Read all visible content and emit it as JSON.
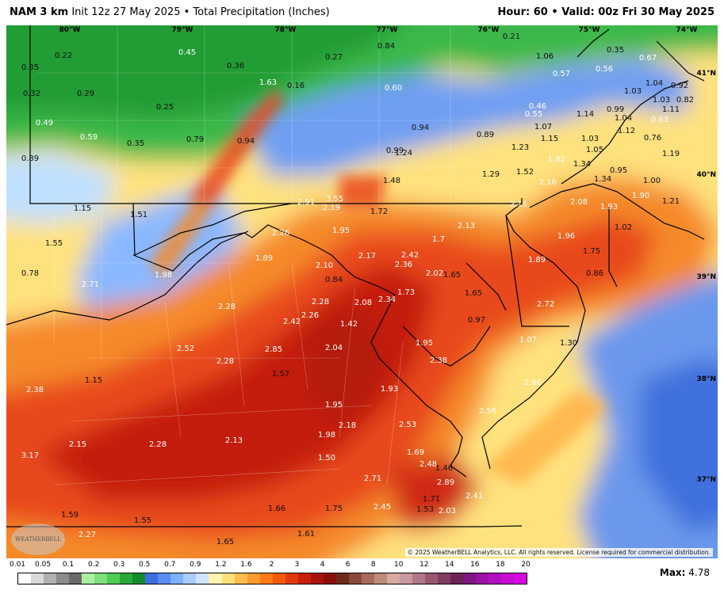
{
  "header": {
    "model": "NAM 3 km",
    "init": "Init 12z 27 May 2025",
    "separator": "•",
    "product": "Total Precipitation (Inches)",
    "hour_label": "Hour:",
    "hour": "60",
    "valid_label": "Valid:",
    "valid": "00z Fri 30 May 2025"
  },
  "map": {
    "copyright": "© 2025 WeatherBELL Analytics, LLC. All rights reserved. License required for commercial distribution.",
    "logo_text": "WEATHERBELL",
    "lon_labels": [
      "80°W",
      "79°W",
      "78°W",
      "77°W",
      "76°W",
      "75°W",
      "74°W"
    ],
    "lat_labels": [
      "41°N",
      "40°N",
      "39°N",
      "38°N",
      "37°N"
    ],
    "values": [
      {
        "text": "0.22",
        "tone": "dark"
      },
      {
        "text": "0.35",
        "tone": "dark"
      },
      {
        "text": "0.32",
        "tone": "dark"
      },
      {
        "text": "0.29",
        "tone": "dark"
      },
      {
        "text": "0.49",
        "tone": "light"
      },
      {
        "text": "0.45",
        "tone": "light"
      },
      {
        "text": "0.36",
        "tone": "dark"
      },
      {
        "text": "1.63",
        "tone": "light"
      },
      {
        "text": "0.16",
        "tone": "dark"
      },
      {
        "text": "0.27",
        "tone": "dark"
      },
      {
        "text": "0.84",
        "tone": "dark"
      },
      {
        "text": "0.21",
        "tone": "dark"
      },
      {
        "text": "1.06",
        "tone": "dark"
      },
      {
        "text": "0.35",
        "tone": "dark"
      },
      {
        "text": "0.67",
        "tone": "light"
      },
      {
        "text": "0.57",
        "tone": "light"
      },
      {
        "text": "0.56",
        "tone": "light"
      },
      {
        "text": "1.04",
        "tone": "dark"
      },
      {
        "text": "0.92",
        "tone": "dark"
      },
      {
        "text": "1.03",
        "tone": "dark"
      },
      {
        "text": "1.03",
        "tone": "dark"
      },
      {
        "text": "0.82",
        "tone": "dark"
      },
      {
        "text": "1.11",
        "tone": "dark"
      },
      {
        "text": "0.25",
        "tone": "dark"
      },
      {
        "text": "0.60",
        "tone": "light"
      },
      {
        "text": "0.46",
        "tone": "light"
      },
      {
        "text": "0.55",
        "tone": "light"
      },
      {
        "text": "0.99",
        "tone": "dark"
      },
      {
        "text": "1.14",
        "tone": "dark"
      },
      {
        "text": "1.04",
        "tone": "dark"
      },
      {
        "text": "0.63",
        "tone": "light"
      },
      {
        "text": "0.59",
        "tone": "light"
      },
      {
        "text": "0.35",
        "tone": "dark"
      },
      {
        "text": "0.79",
        "tone": "dark"
      },
      {
        "text": "0.94",
        "tone": "dark"
      },
      {
        "text": "0.94",
        "tone": "dark"
      },
      {
        "text": "0.89",
        "tone": "dark"
      },
      {
        "text": "1.07",
        "tone": "dark"
      },
      {
        "text": "1.15",
        "tone": "dark"
      },
      {
        "text": "1.03",
        "tone": "dark"
      },
      {
        "text": "1.12",
        "tone": "dark"
      },
      {
        "text": "0.76",
        "tone": "dark"
      },
      {
        "text": "0.89",
        "tone": "dark"
      },
      {
        "text": "0.99",
        "tone": "dark"
      },
      {
        "text": "1.24",
        "tone": "dark"
      },
      {
        "text": "1.23",
        "tone": "dark"
      },
      {
        "text": "1.05",
        "tone": "dark"
      },
      {
        "text": "1.19",
        "tone": "dark"
      },
      {
        "text": "1.82",
        "tone": "light"
      },
      {
        "text": "1.34",
        "tone": "dark"
      },
      {
        "text": "0.95",
        "tone": "dark"
      },
      {
        "text": "1.48",
        "tone": "dark"
      },
      {
        "text": "1.29",
        "tone": "dark"
      },
      {
        "text": "1.52",
        "tone": "dark"
      },
      {
        "text": "2.16",
        "tone": "light"
      },
      {
        "text": "1.34",
        "tone": "dark"
      },
      {
        "text": "1.00",
        "tone": "dark"
      },
      {
        "text": "1.15",
        "tone": "dark"
      },
      {
        "text": "1.51",
        "tone": "dark"
      },
      {
        "text": "2.91",
        "tone": "light"
      },
      {
        "text": "3.55",
        "tone": "light"
      },
      {
        "text": "2.19",
        "tone": "light"
      },
      {
        "text": "1.72",
        "tone": "dark"
      },
      {
        "text": "2.11",
        "tone": "light"
      },
      {
        "text": "2.08",
        "tone": "light"
      },
      {
        "text": "1.93",
        "tone": "light"
      },
      {
        "text": "1.90",
        "tone": "light"
      },
      {
        "text": "1.21",
        "tone": "dark"
      },
      {
        "text": "1.55",
        "tone": "dark"
      },
      {
        "text": "2.26",
        "tone": "light"
      },
      {
        "text": "1.95",
        "tone": "light"
      },
      {
        "text": "1.7",
        "tone": "light"
      },
      {
        "text": "2.13",
        "tone": "light"
      },
      {
        "text": "1.96",
        "tone": "light"
      },
      {
        "text": "1.02",
        "tone": "dark"
      },
      {
        "text": "1.89",
        "tone": "light"
      },
      {
        "text": "2.17",
        "tone": "light"
      },
      {
        "text": "2.42",
        "tone": "light"
      },
      {
        "text": "1.89",
        "tone": "light"
      },
      {
        "text": "1.75",
        "tone": "dark"
      },
      {
        "text": "0.78",
        "tone": "dark"
      },
      {
        "text": "1.98",
        "tone": "light"
      },
      {
        "text": "2.10",
        "tone": "light"
      },
      {
        "text": "2.36",
        "tone": "light"
      },
      {
        "text": "2.02",
        "tone": "light"
      },
      {
        "text": "1.65",
        "tone": "dark"
      },
      {
        "text": "0.86",
        "tone": "dark"
      },
      {
        "text": "2.71",
        "tone": "light"
      },
      {
        "text": "0.84",
        "tone": "dark"
      },
      {
        "text": "2.28",
        "tone": "light"
      },
      {
        "text": "2.28",
        "tone": "light"
      },
      {
        "text": "2.08",
        "tone": "light"
      },
      {
        "text": "2.34",
        "tone": "light"
      },
      {
        "text": "1.73",
        "tone": "light"
      },
      {
        "text": "1.65",
        "tone": "dark"
      },
      {
        "text": "2.72",
        "tone": "light"
      },
      {
        "text": "2.42",
        "tone": "light"
      },
      {
        "text": "2.26",
        "tone": "light"
      },
      {
        "text": "1.42",
        "tone": "light"
      },
      {
        "text": "0.97",
        "tone": "dark"
      },
      {
        "text": "1.07",
        "tone": "light"
      },
      {
        "text": "1.30",
        "tone": "dark"
      },
      {
        "text": "2.52",
        "tone": "light"
      },
      {
        "text": "2.85",
        "tone": "light"
      },
      {
        "text": "2.04",
        "tone": "light"
      },
      {
        "text": "1.95",
        "tone": "light"
      },
      {
        "text": "2.38",
        "tone": "light"
      },
      {
        "text": "2.28",
        "tone": "light"
      },
      {
        "text": "1.57",
        "tone": "dark"
      },
      {
        "text": "2.38",
        "tone": "light"
      },
      {
        "text": "1.15",
        "tone": "dark"
      },
      {
        "text": "2.80",
        "tone": "light"
      },
      {
        "text": "1.93",
        "tone": "light"
      },
      {
        "text": "1.95",
        "tone": "light"
      },
      {
        "text": "2.56",
        "tone": "light"
      },
      {
        "text": "2.18",
        "tone": "light"
      },
      {
        "text": "2.53",
        "tone": "light"
      },
      {
        "text": "1.98",
        "tone": "light"
      },
      {
        "text": "2.13",
        "tone": "light"
      },
      {
        "text": "3.17",
        "tone": "light"
      },
      {
        "text": "2.15",
        "tone": "light"
      },
      {
        "text": "2.28",
        "tone": "light"
      },
      {
        "text": "1.50",
        "tone": "light"
      },
      {
        "text": "1.69",
        "tone": "light"
      },
      {
        "text": "2.48",
        "tone": "light"
      },
      {
        "text": "1.46",
        "tone": "dark"
      },
      {
        "text": "2.71",
        "tone": "light"
      },
      {
        "text": "2.89",
        "tone": "light"
      },
      {
        "text": "2.45",
        "tone": "light"
      },
      {
        "text": "1.71",
        "tone": "dark"
      },
      {
        "text": "2.41",
        "tone": "light"
      },
      {
        "text": "1.53",
        "tone": "dark"
      },
      {
        "text": "2.03",
        "tone": "light"
      },
      {
        "text": "1.59",
        "tone": "dark"
      },
      {
        "text": "1.66",
        "tone": "dark"
      },
      {
        "text": "1.75",
        "tone": "dark"
      },
      {
        "text": "1.55",
        "tone": "dark"
      },
      {
        "text": "2.27",
        "tone": "light"
      },
      {
        "text": "1.61",
        "tone": "dark"
      },
      {
        "text": "1.65",
        "tone": "dark"
      }
    ]
  },
  "legend": {
    "labels": [
      "0.01",
      "0.05",
      "0.1",
      "0.2",
      "0.3",
      "0.5",
      "0.7",
      "0.9",
      "1.2",
      "1.6",
      "2",
      "3",
      "4",
      "6",
      "8",
      "10",
      "12",
      "14",
      "16",
      "18",
      "20"
    ],
    "colors": [
      "#ffffff",
      "#d9d9d9",
      "#b0b0b0",
      "#8c8c8c",
      "#6a6a6a",
      "#a8f0a0",
      "#7ee07a",
      "#4fcd54",
      "#2aa93a",
      "#148c2a",
      "#3d6ee0",
      "#5a8df0",
      "#7db0ff",
      "#a7ccff",
      "#cfe4ff",
      "#fff3b0",
      "#ffe07a",
      "#ffbe4d",
      "#ff9a2e",
      "#ff7a14",
      "#f25a0a",
      "#e03a0a",
      "#c81e0a",
      "#a8140a",
      "#8a0f0a",
      "#6e2a18",
      "#8a4a3a",
      "#a86a5a",
      "#c08a7a",
      "#d8aaa0",
      "#c89aa0",
      "#b07888",
      "#985870",
      "#803c60",
      "#6a2454",
      "#7e1680",
      "#9a12a0",
      "#b40ec0",
      "#c80ad4",
      "#d806e0"
    ],
    "max_label": "Max:",
    "max_value": "4.78"
  }
}
